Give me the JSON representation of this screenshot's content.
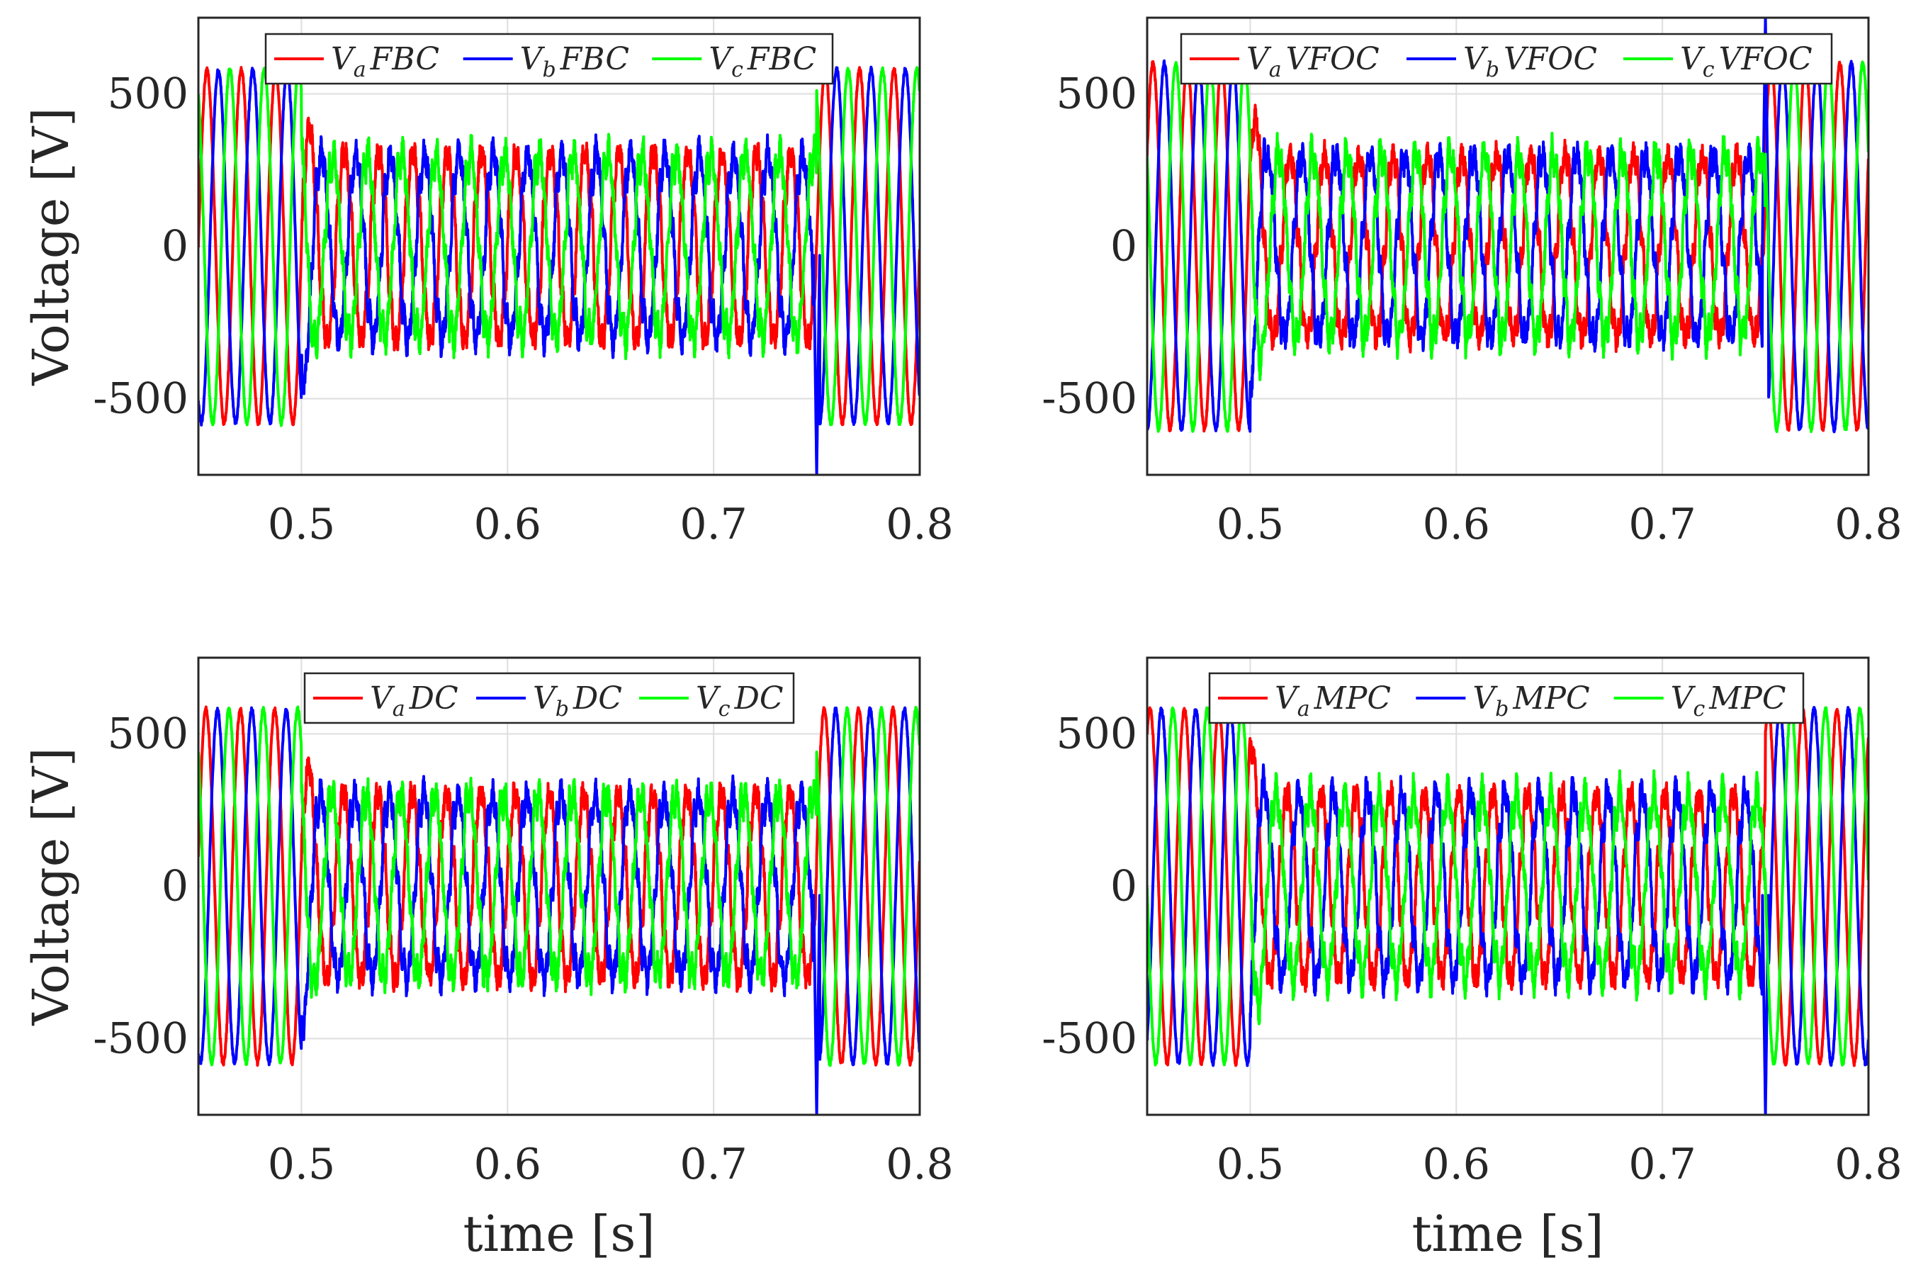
{
  "figure": {
    "ylabel": "Voltage [V]",
    "xlabel": "time [s]",
    "colors": {
      "a": "#ff0000",
      "b": "#0000ff",
      "c": "#00ff00"
    }
  },
  "chart_data": [
    {
      "type": "line",
      "id": "FBC",
      "xlim": [
        0.45,
        0.8
      ],
      "ylim": [
        -750,
        750
      ],
      "xticks": [
        0.5,
        0.6,
        0.7,
        0.8
      ],
      "xtick_labels": [
        "0.5",
        "0.6",
        "0.7",
        "0.8"
      ],
      "yticks": [
        500,
        0,
        -500
      ],
      "ytick_labels": [
        "500",
        "0",
        "-500"
      ],
      "legend": [
        "V_a FBC",
        "V_b FBC",
        "V_c FBC"
      ],
      "legend_parts": [
        [
          "V",
          "a",
          "FBC"
        ],
        [
          "V",
          "b",
          "FBC"
        ],
        [
          "V",
          "c",
          "FBC"
        ]
      ],
      "ylabel": "Voltage [V]",
      "xlabel": "",
      "sag_start": 0.5,
      "sag_end": 0.75,
      "amp_normal": 580,
      "amp_sag": 300,
      "freq_hz": 60,
      "transient_peak_end": -750,
      "series": [
        {
          "name": "V_a FBC",
          "phase_deg": 0
        },
        {
          "name": "V_b FBC",
          "phase_deg": -120
        },
        {
          "name": "V_c FBC",
          "phase_deg": 120
        }
      ]
    },
    {
      "type": "line",
      "id": "VFOC",
      "xlim": [
        0.45,
        0.8
      ],
      "ylim": [
        -750,
        750
      ],
      "xticks": [
        0.5,
        0.6,
        0.7,
        0.8
      ],
      "xtick_labels": [
        "0.5",
        "0.6",
        "0.7",
        "0.8"
      ],
      "yticks": [
        500,
        0,
        -500
      ],
      "ytick_labels": [
        "500",
        "0",
        "-500"
      ],
      "legend": [
        "V_a VFOC",
        "V_b VFOC",
        "V_c VFOC"
      ],
      "legend_parts": [
        [
          "V",
          "a",
          "VFOC"
        ],
        [
          "V",
          "b",
          "VFOC"
        ],
        [
          "V",
          "c",
          "VFOC"
        ]
      ],
      "ylabel": "",
      "xlabel": "",
      "sag_start": 0.5,
      "sag_end": 0.75,
      "amp_normal": 600,
      "amp_sag": 300,
      "freq_hz": 60,
      "transient_peak_end": 750,
      "series": [
        {
          "name": "V_a VFOC",
          "phase_deg": 30
        },
        {
          "name": "V_b VFOC",
          "phase_deg": -90
        },
        {
          "name": "V_c VFOC",
          "phase_deg": 150
        }
      ]
    },
    {
      "type": "line",
      "id": "DC",
      "xlim": [
        0.45,
        0.8
      ],
      "ylim": [
        -750,
        750
      ],
      "xticks": [
        0.5,
        0.6,
        0.7,
        0.8
      ],
      "xtick_labels": [
        "0.5",
        "0.6",
        "0.7",
        "0.8"
      ],
      "yticks": [
        500,
        0,
        -500
      ],
      "ytick_labels": [
        "500",
        "0",
        "-500"
      ],
      "legend": [
        "V_a DC",
        "V_b DC",
        "V_c DC"
      ],
      "legend_parts": [
        [
          "V",
          "a",
          "DC"
        ],
        [
          "V",
          "b",
          "DC"
        ],
        [
          "V",
          "c",
          "DC"
        ]
      ],
      "ylabel": "Voltage [V]",
      "xlabel": "time [s]",
      "sag_start": 0.5,
      "sag_end": 0.75,
      "amp_normal": 580,
      "amp_sag": 300,
      "freq_hz": 60,
      "transient_peak_end": -750,
      "series": [
        {
          "name": "V_a DC",
          "phase_deg": 10
        },
        {
          "name": "V_b DC",
          "phase_deg": -110
        },
        {
          "name": "V_c DC",
          "phase_deg": 130
        }
      ]
    },
    {
      "type": "line",
      "id": "MPC",
      "xlim": [
        0.45,
        0.8
      ],
      "ylim": [
        -750,
        750
      ],
      "xticks": [
        0.5,
        0.6,
        0.7,
        0.8
      ],
      "xtick_labels": [
        "0.5",
        "0.6",
        "0.7",
        "0.8"
      ],
      "yticks": [
        500,
        0,
        -500
      ],
      "ytick_labels": [
        "500",
        "0",
        "-500"
      ],
      "legend": [
        "V_a MPC",
        "V_b MPC",
        "V_c MPC"
      ],
      "legend_parts": [
        [
          "V",
          "a",
          "MPC"
        ],
        [
          "V",
          "b",
          "MPC"
        ],
        [
          "V",
          "c",
          "MPC"
        ]
      ],
      "ylabel": "",
      "xlabel": "time [s]",
      "sag_start": 0.5,
      "sag_end": 0.75,
      "amp_normal": 580,
      "amp_sag": 300,
      "freq_hz": 60,
      "transient_peak_end": -750,
      "series": [
        {
          "name": "V_a MPC",
          "phase_deg": 60
        },
        {
          "name": "V_b MPC",
          "phase_deg": -60
        },
        {
          "name": "V_c MPC",
          "phase_deg": 180
        }
      ]
    }
  ]
}
